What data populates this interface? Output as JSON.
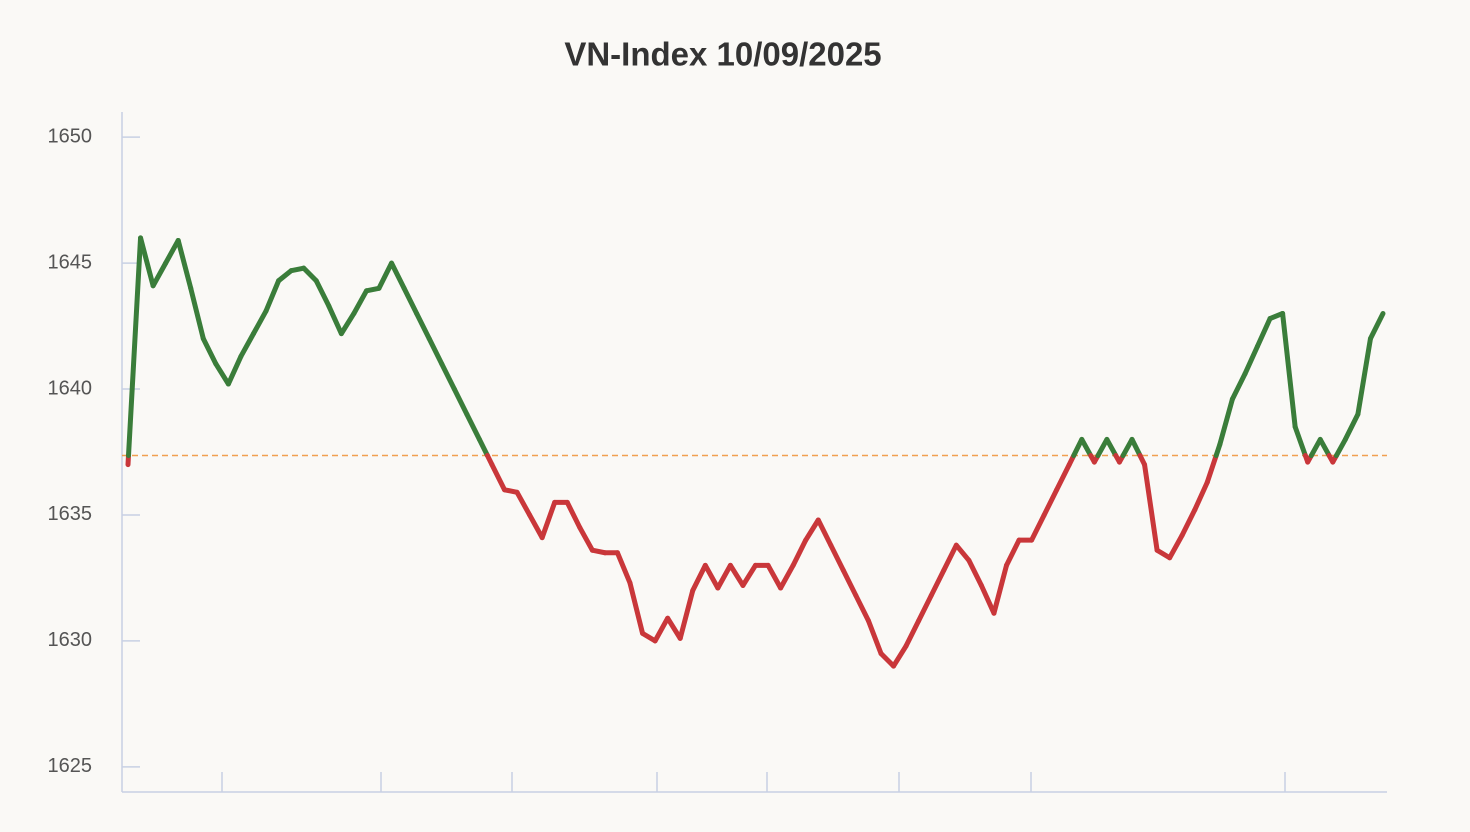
{
  "chart_data": {
    "type": "line",
    "title": "VN-Index 10/09/2025",
    "values": [
      1637,
      1646,
      1644.1,
      1645,
      1645.9,
      1644,
      1642,
      1641,
      1640.2,
      1641.3,
      1642.2,
      1643.1,
      1644.3,
      1644.7,
      1644.8,
      1644.3,
      1643.3,
      1642.2,
      1643,
      1643.9,
      1644,
      1645,
      1644,
      1643,
      1642,
      1641,
      1640,
      1639,
      1638,
      1637,
      1636,
      1635.9,
      1635,
      1634.1,
      1635.5,
      1635.5,
      1634.5,
      1633.6,
      1633.5,
      1633.5,
      1632.3,
      1630.3,
      1630,
      1630.9,
      1630.1,
      1632,
      1633,
      1632.1,
      1633,
      1632.2,
      1633,
      1633,
      1632.1,
      1633,
      1634,
      1634.8,
      1633.8,
      1632.8,
      1631.8,
      1630.8,
      1629.5,
      1629,
      1629.8,
      1630.8,
      1631.8,
      1632.8,
      1633.8,
      1633.2,
      1632.2,
      1631.1,
      1633,
      1634,
      1634,
      1635,
      1636,
      1637,
      1638,
      1637.1,
      1638,
      1637.1,
      1638,
      1637,
      1633.6,
      1633.3,
      1634.2,
      1635.2,
      1636.3,
      1637.8,
      1639.6,
      1640.6,
      1641.7,
      1642.8,
      1643,
      1638.5,
      1637.1,
      1638,
      1637.1,
      1638,
      1639,
      1642,
      1643
    ],
    "reference": 1637.36,
    "color_above": "#3a7d3a",
    "color_below": "#c9373a",
    "reference_color": "#f0a050",
    "ylim": [
      1624,
      1651
    ],
    "yticks": [
      1625,
      1630,
      1635,
      1640,
      1645,
      1650
    ],
    "grid": false
  }
}
